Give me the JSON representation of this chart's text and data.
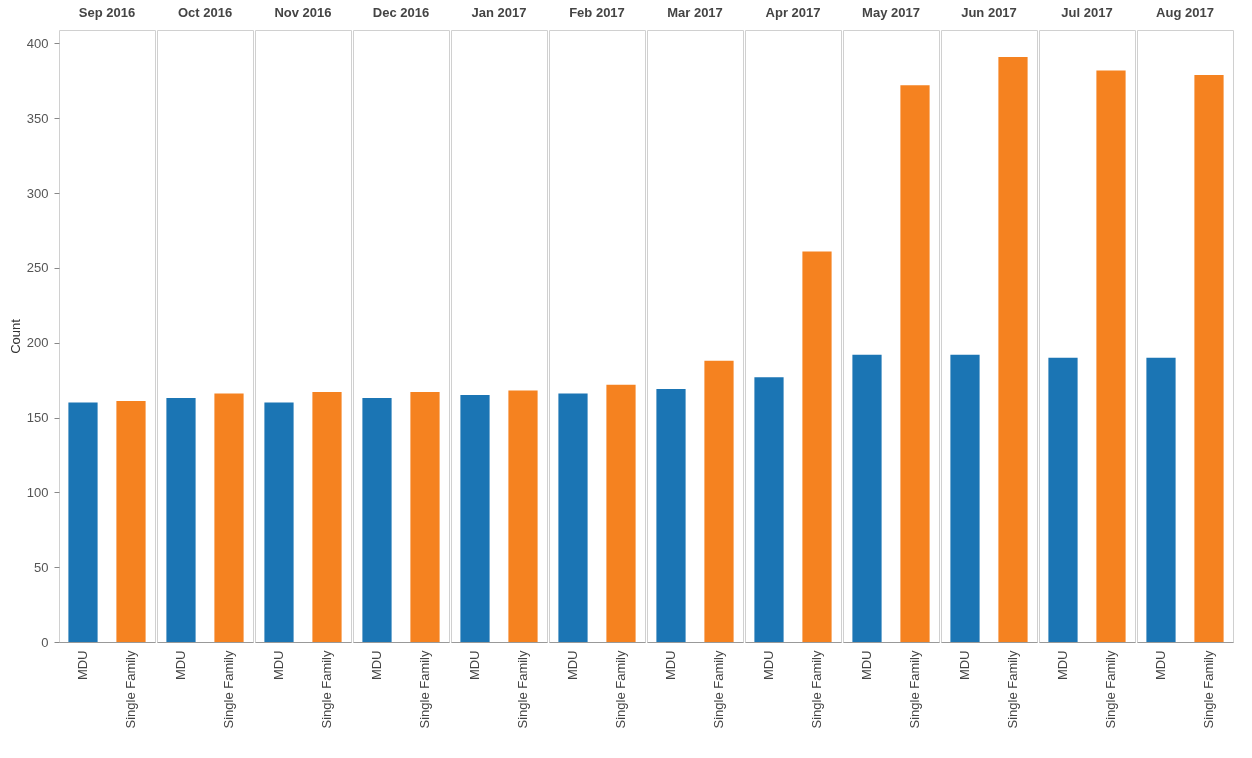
{
  "chart_data": [
    {
      "type": "bar",
      "title": "Sep 2016",
      "ylabel": "Count",
      "categories": [
        "MDU",
        "Single Family"
      ],
      "values": [
        160,
        161
      ],
      "colors": [
        "#1b75b4",
        "#f58220"
      ],
      "ylim": [
        0,
        409
      ],
      "yticks": [
        0,
        50,
        100,
        150,
        200,
        250,
        300,
        350,
        400
      ],
      "grid": false
    },
    {
      "type": "bar",
      "title": "Oct 2016",
      "categories": [
        "MDU",
        "Single Family"
      ],
      "values": [
        163,
        166
      ],
      "colors": [
        "#1b75b4",
        "#f58220"
      ],
      "ylim": [
        0,
        409
      ],
      "tick_labels": "x",
      "grid": false
    },
    {
      "type": "bar",
      "title": "Nov 2016",
      "categories": [
        "MDU",
        "Single Family"
      ],
      "values": [
        160,
        167
      ],
      "colors": [
        "#1b75b4",
        "#f58220"
      ],
      "ylim": [
        0,
        409
      ],
      "tick_labels": "x",
      "grid": false
    },
    {
      "type": "bar",
      "title": "Dec 2016",
      "categories": [
        "MDU",
        "Single Family"
      ],
      "values": [
        163,
        167
      ],
      "colors": [
        "#1b75b4",
        "#f58220"
      ],
      "ylim": [
        0,
        409
      ],
      "tick_labels": "x",
      "grid": false
    },
    {
      "type": "bar",
      "title": "Jan 2017",
      "categories": [
        "MDU",
        "Single Family"
      ],
      "values": [
        165,
        168
      ],
      "colors": [
        "#1b75b4",
        "#f58220"
      ],
      "ylim": [
        0,
        409
      ],
      "tick_labels": "x",
      "grid": false
    },
    {
      "type": "bar",
      "title": "Feb 2017",
      "categories": [
        "MDU",
        "Single Family"
      ],
      "values": [
        166,
        172
      ],
      "colors": [
        "#1b75b4",
        "#f58220"
      ],
      "ylim": [
        0,
        409
      ],
      "tick_labels": "x",
      "grid": false
    },
    {
      "type": "bar",
      "title": "Mar 2017",
      "categories": [
        "MDU",
        "Single Family"
      ],
      "values": [
        169,
        188
      ],
      "colors": [
        "#1b75b4",
        "#f58220"
      ],
      "ylim": [
        0,
        409
      ],
      "tick_labels": "x",
      "grid": false
    },
    {
      "type": "bar",
      "title": "Apr 2017",
      "categories": [
        "MDU",
        "Single Family"
      ],
      "values": [
        177,
        261
      ],
      "colors": [
        "#1b75b4",
        "#f58220"
      ],
      "ylim": [
        0,
        409
      ],
      "tick_labels": "x",
      "grid": false
    },
    {
      "type": "bar",
      "title": "May 2017",
      "categories": [
        "MDU",
        "Single Family"
      ],
      "values": [
        192,
        372
      ],
      "colors": [
        "#1b75b4",
        "#f58220"
      ],
      "ylim": [
        0,
        409
      ],
      "tick_labels": "x",
      "grid": false
    },
    {
      "type": "bar",
      "title": "Jun 2017",
      "categories": [
        "MDU",
        "Single Family"
      ],
      "values": [
        192,
        391
      ],
      "colors": [
        "#1b75b4",
        "#f58220"
      ],
      "ylim": [
        0,
        409
      ],
      "tick_labels": "x",
      "grid": false
    },
    {
      "type": "bar",
      "title": "Jul 2017",
      "categories": [
        "MDU",
        "Single Family"
      ],
      "values": [
        190,
        382
      ],
      "colors": [
        "#1b75b4",
        "#f58220"
      ],
      "ylim": [
        0,
        409
      ],
      "tick_labels": "x",
      "grid": false
    },
    {
      "type": "bar",
      "title": "Aug 2017",
      "categories": [
        "MDU",
        "Single Family"
      ],
      "values": [
        190,
        379
      ],
      "colors": [
        "#1b75b4",
        "#f58220"
      ],
      "ylim": [
        0,
        409
      ],
      "tick_labels": "x",
      "grid": false
    }
  ]
}
